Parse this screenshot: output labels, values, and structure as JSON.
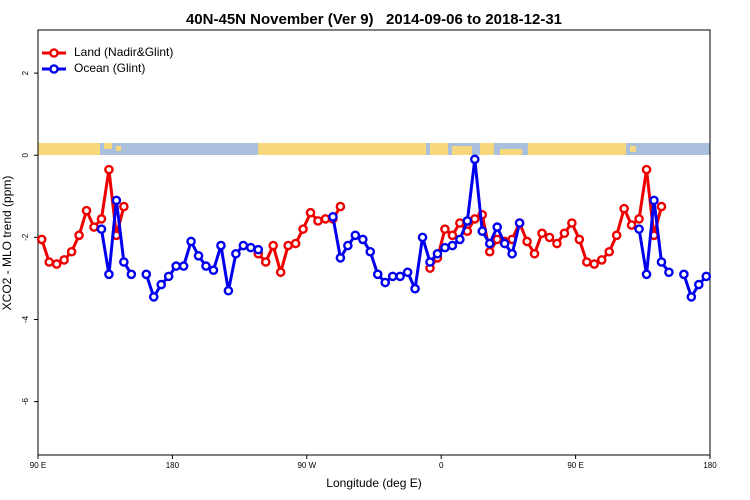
{
  "chart_data": {
    "type": "line",
    "title": "40N-45N November (Ver 9)   2014-09-06 to 2018-12-31",
    "x_label": "Longitude (deg E)",
    "y_label": "XCO2 - MLO trend (ppm)",
    "xlim": [
      90,
      540
    ],
    "ylim": [
      -7.3,
      3.05
    ],
    "xticks": [
      {
        "value": 90,
        "label": "90 E"
      },
      180,
      {
        "value": 270,
        "label": "90 W"
      },
      {
        "value": 360,
        "label": "0"
      },
      {
        "value": 450,
        "label": "90 E"
      },
      {
        "value": 540,
        "label": "180"
      }
    ],
    "yticks": [
      2,
      0,
      -2,
      -4,
      -6
    ],
    "legend": "top-left",
    "x": [
      92.5,
      97.5,
      102.5,
      107.5,
      112.5,
      117.5,
      122.5,
      127.5,
      132.5,
      137.5,
      142.5,
      147.5,
      152.5,
      157.5,
      162.5,
      167.5,
      172.5,
      177.5,
      182.5,
      187.5,
      192.5,
      197.5,
      202.5,
      207.5,
      212.5,
      217.5,
      222.5,
      227.5,
      232.5,
      237.5,
      242.5,
      247.5,
      252.5,
      257.5,
      262.5,
      267.5,
      272.5,
      277.5,
      282.5,
      287.5,
      292.5,
      297.5,
      302.5,
      307.5,
      312.5,
      317.5,
      322.5,
      327.5,
      332.5,
      337.5,
      342.5,
      347.5,
      352.5,
      357.5,
      362.5,
      367.5,
      372.5,
      377.5,
      382.5,
      387.5,
      392.5,
      397.5,
      402.5,
      407.5,
      412.5,
      417.5,
      422.5,
      427.5,
      432.5,
      437.5,
      442.5,
      447.5,
      452.5,
      457.5,
      462.5,
      467.5,
      472.5,
      477.5,
      482.5,
      487.5,
      492.5,
      497.5,
      502.5,
      507.5,
      512.5,
      517.5,
      522.5,
      527.5,
      532.5,
      537.5
    ],
    "series": [
      {
        "name": "Land (Nadir&Glint)",
        "color": "#ee0000",
        "values": [
          -2.05,
          -2.6,
          -2.65,
          -2.55,
          -2.35,
          -1.95,
          -1.35,
          -1.75,
          -1.55,
          -0.35,
          -1.95,
          -1.25,
          null,
          null,
          null,
          null,
          null,
          null,
          null,
          null,
          null,
          null,
          null,
          null,
          null,
          null,
          null,
          null,
          null,
          -2.4,
          -2.6,
          -2.2,
          -2.85,
          -2.2,
          -2.15,
          -1.8,
          -1.4,
          -1.6,
          -1.55,
          -1.55,
          -1.25,
          null,
          null,
          null,
          null,
          null,
          null,
          null,
          null,
          null,
          null,
          null,
          -2.75,
          -2.5,
          -1.8,
          -1.95,
          -1.65,
          -1.85,
          -1.55,
          -1.45,
          -2.35,
          -2.05,
          -2.1,
          -2.05,
          -1.65,
          -2.1,
          -2.4,
          -1.9,
          -2.0,
          -2.15,
          -1.9,
          -1.65,
          -2.05,
          -2.6,
          -2.65,
          -2.55,
          -2.35,
          -1.95,
          -1.3,
          -1.7,
          -1.55,
          -0.35,
          -1.95,
          -1.25,
          null,
          null,
          null,
          null,
          null,
          null
        ]
      },
      {
        "name": "Ocean (Glint)",
        "color": "#0000ee",
        "values": [
          null,
          null,
          null,
          null,
          null,
          null,
          null,
          null,
          -1.8,
          -2.9,
          -1.1,
          -2.6,
          -2.9,
          null,
          -2.9,
          -3.45,
          -3.15,
          -2.95,
          -2.7,
          -2.7,
          -2.1,
          -2.45,
          -2.7,
          -2.8,
          -2.2,
          -3.3,
          -2.4,
          -2.2,
          -2.25,
          -2.3,
          null,
          null,
          null,
          null,
          null,
          null,
          null,
          null,
          null,
          -1.5,
          -2.5,
          -2.2,
          -1.95,
          -2.05,
          -2.35,
          -2.9,
          -3.1,
          -2.95,
          -2.95,
          -2.85,
          -3.25,
          -2.0,
          -2.6,
          -2.4,
          -2.25,
          -2.2,
          -2.05,
          -1.6,
          -0.1,
          -1.85,
          -2.15,
          -1.75,
          -2.15,
          -2.4,
          -1.65,
          null,
          null,
          null,
          null,
          null,
          null,
          null,
          null,
          null,
          null,
          null,
          null,
          null,
          null,
          null,
          -1.8,
          -2.9,
          -1.1,
          -2.6,
          -2.85,
          null,
          -2.9,
          -3.45,
          -3.15,
          -2.95
        ]
      }
    ]
  }
}
